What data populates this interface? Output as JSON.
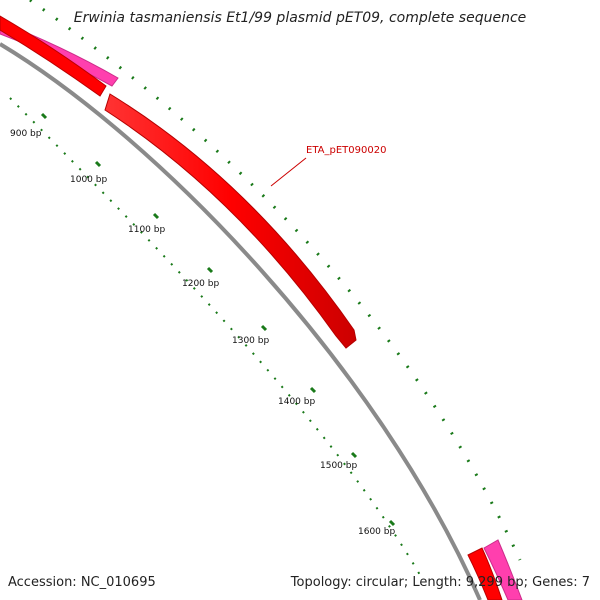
{
  "title": "Erwinia tasmaniensis Et1/99 plasmid pET09, complete sequence",
  "footer": {
    "accession": "Accession: NC_010695",
    "summary": "Topology: circular; Length: 9,299 bp; Genes: 7"
  },
  "gene_label": "ETA_pET090020",
  "tick_labels": [
    "900 bp",
    "1000 bp",
    "1100 bp",
    "1200 bp",
    "1300 bp",
    "1400 bp",
    "1500 bp",
    "1600 bp"
  ],
  "colors": {
    "backbone": "#8a8a8a",
    "gene_red": "#ff0000",
    "gene_pink": "#ff3fae",
    "gc_ticks": "#1a7a1a",
    "label_red": "#cc0000"
  }
}
